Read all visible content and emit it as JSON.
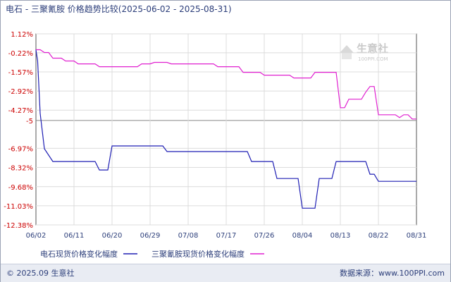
{
  "chart_data": {
    "type": "line",
    "title": "电石 - 三聚氰胺 价格趋势比较(2025-06-02 - 2025-08-31)",
    "x_tick_labels": [
      "06/02",
      "06/11",
      "06/20",
      "06/29",
      "07/08",
      "07/17",
      "07/26",
      "08/04",
      "08/13",
      "08/22",
      "08/31"
    ],
    "y_tick_labels": [
      "1.12%",
      "-0.22%",
      "-1.57%",
      "-2.92%",
      "-4.27%",
      "-5",
      "-6.97%",
      "-8.32%",
      "-9.68%",
      "-11.03%",
      "-12.38%"
    ],
    "y_ticks": [
      1.12,
      -0.22,
      -1.57,
      -2.92,
      -4.27,
      -5,
      -6.97,
      -8.32,
      -9.68,
      -11.03,
      -12.38
    ],
    "xlim": [
      0,
      90
    ],
    "ylim": [
      -12.38,
      1.12
    ],
    "reference_line": -5,
    "grid": true,
    "legend_position": "bottom",
    "series": [
      {
        "name": "电石现货价格变化幅度",
        "color": "#1f1fb4",
        "points": [
          [
            0,
            0
          ],
          [
            0.4,
            -0.8
          ],
          [
            1,
            -4.5
          ],
          [
            2,
            -7.0
          ],
          [
            4,
            -7.9
          ],
          [
            14,
            -7.9
          ],
          [
            15,
            -8.5
          ],
          [
            17,
            -8.5
          ],
          [
            18,
            -6.8
          ],
          [
            30,
            -6.8
          ],
          [
            31,
            -7.2
          ],
          [
            50,
            -7.2
          ],
          [
            51,
            -7.9
          ],
          [
            56,
            -7.9
          ],
          [
            57,
            -9.1
          ],
          [
            62,
            -9.1
          ],
          [
            63,
            -11.2
          ],
          [
            66,
            -11.2
          ],
          [
            67,
            -9.1
          ],
          [
            70,
            -9.1
          ],
          [
            71,
            -7.9
          ],
          [
            78,
            -7.9
          ],
          [
            79,
            -8.8
          ],
          [
            80,
            -8.8
          ],
          [
            81,
            -9.3
          ],
          [
            90,
            -9.3
          ]
        ]
      },
      {
        "name": "三聚氰胺现货价格变化幅度",
        "color": "#e020d0",
        "points": [
          [
            0,
            0
          ],
          [
            1,
            0
          ],
          [
            2,
            -0.2
          ],
          [
            3,
            -0.2
          ],
          [
            4,
            -0.6
          ],
          [
            6,
            -0.6
          ],
          [
            7,
            -0.8
          ],
          [
            9,
            -0.8
          ],
          [
            10,
            -1.0
          ],
          [
            14,
            -1.0
          ],
          [
            15,
            -1.2
          ],
          [
            24,
            -1.2
          ],
          [
            25,
            -1.0
          ],
          [
            27,
            -1.0
          ],
          [
            28,
            -0.9
          ],
          [
            31,
            -0.9
          ],
          [
            32,
            -1.0
          ],
          [
            42,
            -1.0
          ],
          [
            43,
            -1.2
          ],
          [
            48,
            -1.2
          ],
          [
            49,
            -1.6
          ],
          [
            53,
            -1.6
          ],
          [
            54,
            -1.8
          ],
          [
            60,
            -1.8
          ],
          [
            61,
            -2.0
          ],
          [
            65,
            -2.0
          ],
          [
            66,
            -1.6
          ],
          [
            71,
            -1.6
          ],
          [
            72,
            -4.1
          ],
          [
            73,
            -4.1
          ],
          [
            74,
            -3.5
          ],
          [
            77,
            -3.5
          ],
          [
            78,
            -3.0
          ],
          [
            79,
            -2.6
          ],
          [
            80,
            -2.6
          ],
          [
            81,
            -4.6
          ],
          [
            85,
            -4.6
          ],
          [
            86,
            -4.8
          ],
          [
            87,
            -4.6
          ],
          [
            88,
            -4.6
          ],
          [
            89,
            -4.9
          ],
          [
            90,
            -4.9
          ]
        ]
      }
    ]
  },
  "watermark": {
    "text": "生意社",
    "subtext": "100PPI.COM",
    "color": "#c9c9c9"
  },
  "footer": {
    "left": "© 2025.09 生意社",
    "right": "数据来源：www.100PPI.com"
  },
  "colors": {
    "title": "#2c3e7a",
    "axis_text": "#2c3e7a",
    "y_text": "#cc0000",
    "grid": "#dcdcdc",
    "axis": "#555555"
  }
}
